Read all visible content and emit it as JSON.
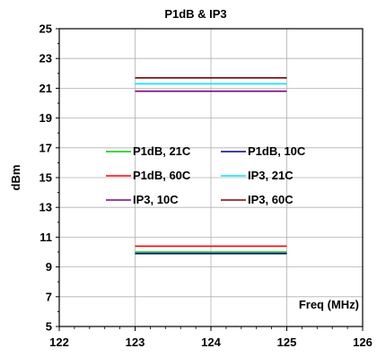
{
  "chart_data": {
    "type": "line",
    "title": "P1dB & IP3",
    "xlabel": "Freq (MHz)",
    "ylabel": "dBm",
    "xlim": [
      122,
      126
    ],
    "ylim": [
      5,
      25
    ],
    "xticks": [
      "122",
      "123",
      "124",
      "125",
      "126"
    ],
    "yticks": [
      "5",
      "7",
      "9",
      "11",
      "13",
      "15",
      "17",
      "19",
      "21",
      "23",
      "25"
    ],
    "grid": true,
    "legend_position": "center",
    "x": [
      123,
      124,
      125
    ],
    "series": [
      {
        "name": "P1dB, 21C",
        "color": "#00c800",
        "values": [
          10.0,
          10.0,
          10.0
        ]
      },
      {
        "name": "P1dB, 10C",
        "color": "#000080",
        "values": [
          9.9,
          9.9,
          9.9
        ]
      },
      {
        "name": "P1dB, 60C",
        "color": "#ff0000",
        "values": [
          10.4,
          10.4,
          10.4
        ]
      },
      {
        "name": "IP3, 21C",
        "color": "#00e5ff",
        "values": [
          21.3,
          21.3,
          21.3
        ]
      },
      {
        "name": "IP3, 10C",
        "color": "#800080",
        "values": [
          20.8,
          20.8,
          20.8
        ]
      },
      {
        "name": "IP3, 60C",
        "color": "#800000",
        "values": [
          21.7,
          21.7,
          21.7
        ]
      }
    ]
  }
}
